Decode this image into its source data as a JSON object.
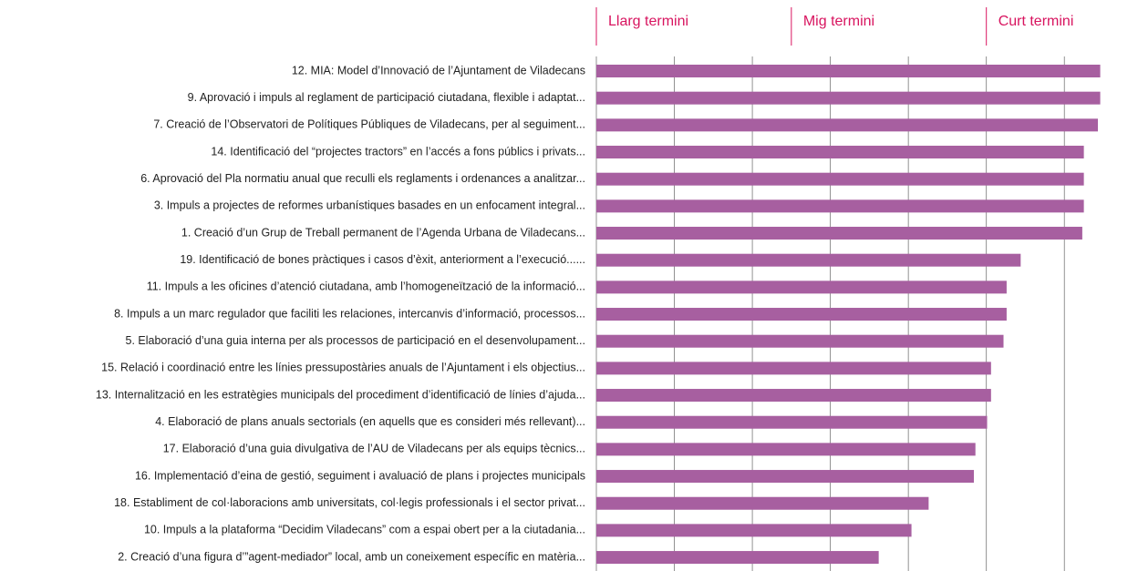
{
  "chart_data": {
    "type": "barh",
    "categories": [
      "12. MIA: Model d’Innovació de l’Ajuntament de Viladecans",
      "9. Aprovació i impuls al reglament de participació ciutadana, flexible i adaptat...",
      "7. Creació de l’Observatori de Polítiques Públiques de Viladecans, per al seguiment...",
      "14. Identificació del “projectes tractors” en l’accés a fons públics i privats...",
      "6. Aprovació del Pla normatiu anual que reculli els reglaments i ordenances a analitzar...",
      "3. Impuls a projectes de reformes urbanístiques basades en un enfocament integral...",
      "1. Creació d’un Grup de Treball permanent de l’Agenda Urbana de Viladecans...",
      "19. Identificació de bones pràctiques i casos d’èxit, anteriorment a l’execució......",
      "11. Impuls a les oficines d’atenció ciutadana, amb l’homogeneïtzació de la informació...",
      "8. Impuls a un marc regulador que faciliti les relaciones, intercanvis d’informació, processos...",
      "5. Elaboració d’una guia interna per als processos de participació en el desenvolupament...",
      "15. Relació i coordinació entre les línies pressupostàries anuals de l’Ajuntament i els objectius...",
      "13. Internalització en les estratègies municipals del procediment d’identificació de línies d’ajuda...",
      "4. Elaboració de plans anuals sectorials (en aquells que es consideri més rellevant)...",
      "17. Elaboració d’una guia divulgativa de l’AU de Viladecans per als equips tècnics...",
      "16. Implementació d’eina de gestió, seguiment i avaluació de plans i projectes municipals",
      "18. Establiment de col·laboracions amb universitats, col·legis professionals i el sector privat...",
      "10. Impuls a la plataforma “Decidim Viladecans” com a espai obert per a la ciutadania...",
      "2. Creació d’una figura d’”agent-mediador” local, amb un coneixement específic en matèria..."
    ],
    "values": [
      6.46,
      6.46,
      6.43,
      6.25,
      6.25,
      6.25,
      6.23,
      5.44,
      5.26,
      5.26,
      5.22,
      5.06,
      5.06,
      5.01,
      4.86,
      4.84,
      4.26,
      4.04,
      3.62
    ],
    "color": "#a75fa0",
    "xlim": [
      0,
      6.5
    ],
    "xticks": [
      0,
      1,
      2,
      3,
      4,
      5,
      6
    ],
    "grid": true,
    "annotations": [
      {
        "text": "Llarg termini",
        "x": 0
      },
      {
        "text": "Mig termini",
        "x": 2.5
      },
      {
        "text": "Curt termini",
        "x": 5
      }
    ]
  }
}
